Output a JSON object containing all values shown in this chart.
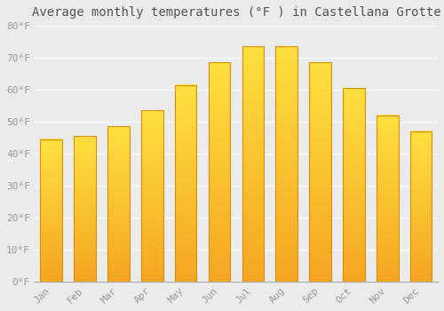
{
  "title": "Average monthly temperatures (°F ) in Castellana Grotte",
  "months": [
    "Jan",
    "Feb",
    "Mar",
    "Apr",
    "May",
    "Jun",
    "Jul",
    "Aug",
    "Sep",
    "Oct",
    "Nov",
    "Dec"
  ],
  "values": [
    44.5,
    45.5,
    48.5,
    53.5,
    61.5,
    68.5,
    73.5,
    73.5,
    68.5,
    60.5,
    52.0,
    47.0
  ],
  "bar_color_bottom": "#F5A623",
  "bar_color_top": "#FFE040",
  "bar_border_color": "#D4900A",
  "ylim": [
    0,
    80
  ],
  "yticks": [
    0,
    10,
    20,
    30,
    40,
    50,
    60,
    70,
    80
  ],
  "ytick_labels": [
    "0°F",
    "10°F",
    "20°F",
    "30°F",
    "40°F",
    "50°F",
    "60°F",
    "70°F",
    "80°F"
  ],
  "background_color": "#EBEBEB",
  "grid_color": "#FFFFFF",
  "title_fontsize": 10,
  "tick_fontsize": 8,
  "font_family": "monospace"
}
